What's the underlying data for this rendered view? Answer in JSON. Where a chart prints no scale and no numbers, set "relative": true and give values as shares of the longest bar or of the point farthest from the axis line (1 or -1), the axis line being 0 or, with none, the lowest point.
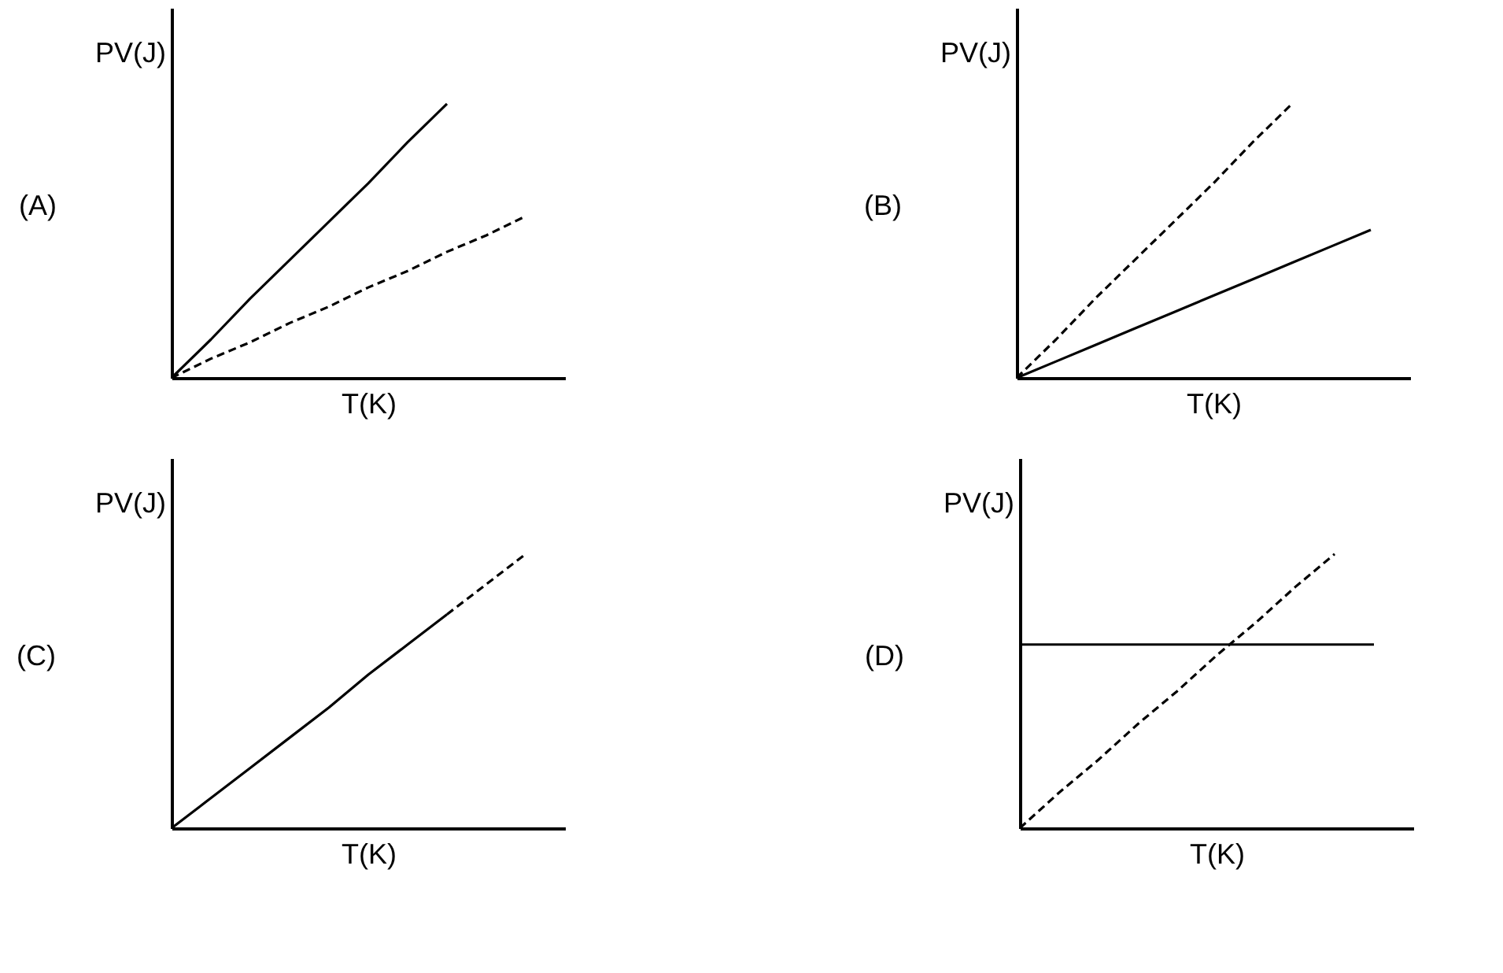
{
  "chart_data": [
    {
      "type": "line",
      "title": "(A)",
      "xlabel": "T(K)",
      "ylabel": "PV(J)",
      "relative": true,
      "grid": false,
      "tick_labels": false,
      "categories": [
        null,
        null,
        null,
        null,
        null,
        null,
        null,
        null,
        null,
        null
      ],
      "series": [
        {
          "color": "#000000",
          "line_style": "solid",
          "values": [
            0,
            0.14,
            0.29,
            0.43,
            0.57,
            0.71,
            0.86,
            1,
            null,
            null
          ]
        },
        {
          "color": "#000000",
          "line_style": "dashed",
          "values": [
            0,
            0.07,
            0.13,
            0.2,
            0.26,
            0.33,
            0.39,
            0.46,
            0.52,
            0.59
          ]
        }
      ]
    },
    {
      "type": "line",
      "title": "(B)",
      "xlabel": "T(K)",
      "ylabel": "PV(J)",
      "relative": true,
      "grid": false,
      "tick_labels": false,
      "categories": [
        null,
        null,
        null,
        null,
        null,
        null,
        null,
        null,
        null,
        null
      ],
      "series": [
        {
          "color": "#000000",
          "line_style": "dashed",
          "values": [
            0,
            0.14,
            0.29,
            0.43,
            0.57,
            0.71,
            0.86,
            1,
            null,
            null
          ]
        },
        {
          "color": "#000000",
          "line_style": "solid",
          "values": [
            0,
            0.06,
            0.12,
            0.18,
            0.24,
            0.3,
            0.36,
            0.42,
            0.48,
            0.54
          ]
        }
      ]
    },
    {
      "type": "line",
      "title": "(C)",
      "xlabel": "T(K)",
      "ylabel": "PV(J)",
      "relative": true,
      "grid": false,
      "tick_labels": false,
      "categories": [
        null,
        null,
        null,
        null,
        null,
        null,
        null,
        null,
        null,
        null
      ],
      "series": [
        {
          "color": "#000000",
          "line_style": "solid",
          "values": [
            0,
            0.11,
            0.22,
            0.33,
            0.44,
            0.56,
            0.67,
            0.78,
            null,
            null
          ]
        },
        {
          "color": "#000000",
          "line_style": "dashed",
          "values": [
            null,
            null,
            null,
            null,
            null,
            null,
            null,
            0.78,
            0.89,
            1
          ]
        }
      ]
    },
    {
      "type": "line",
      "title": "(D)",
      "xlabel": "T(K)",
      "ylabel": "PV(J)",
      "relative": true,
      "grid": false,
      "tick_labels": false,
      "categories": [
        null,
        null,
        null,
        null,
        null,
        null,
        null,
        null,
        null,
        null
      ],
      "series": [
        {
          "color": "#000000",
          "line_style": "solid",
          "values": [
            0.67,
            0.67,
            0.67,
            0.67,
            0.67,
            0.67,
            0.67,
            0.67,
            0.67,
            0.67
          ]
        },
        {
          "color": "#000000",
          "line_style": "dashed",
          "values": [
            0,
            0.13,
            0.25,
            0.38,
            0.5,
            0.63,
            0.75,
            0.88,
            1,
            null
          ]
        }
      ]
    }
  ]
}
